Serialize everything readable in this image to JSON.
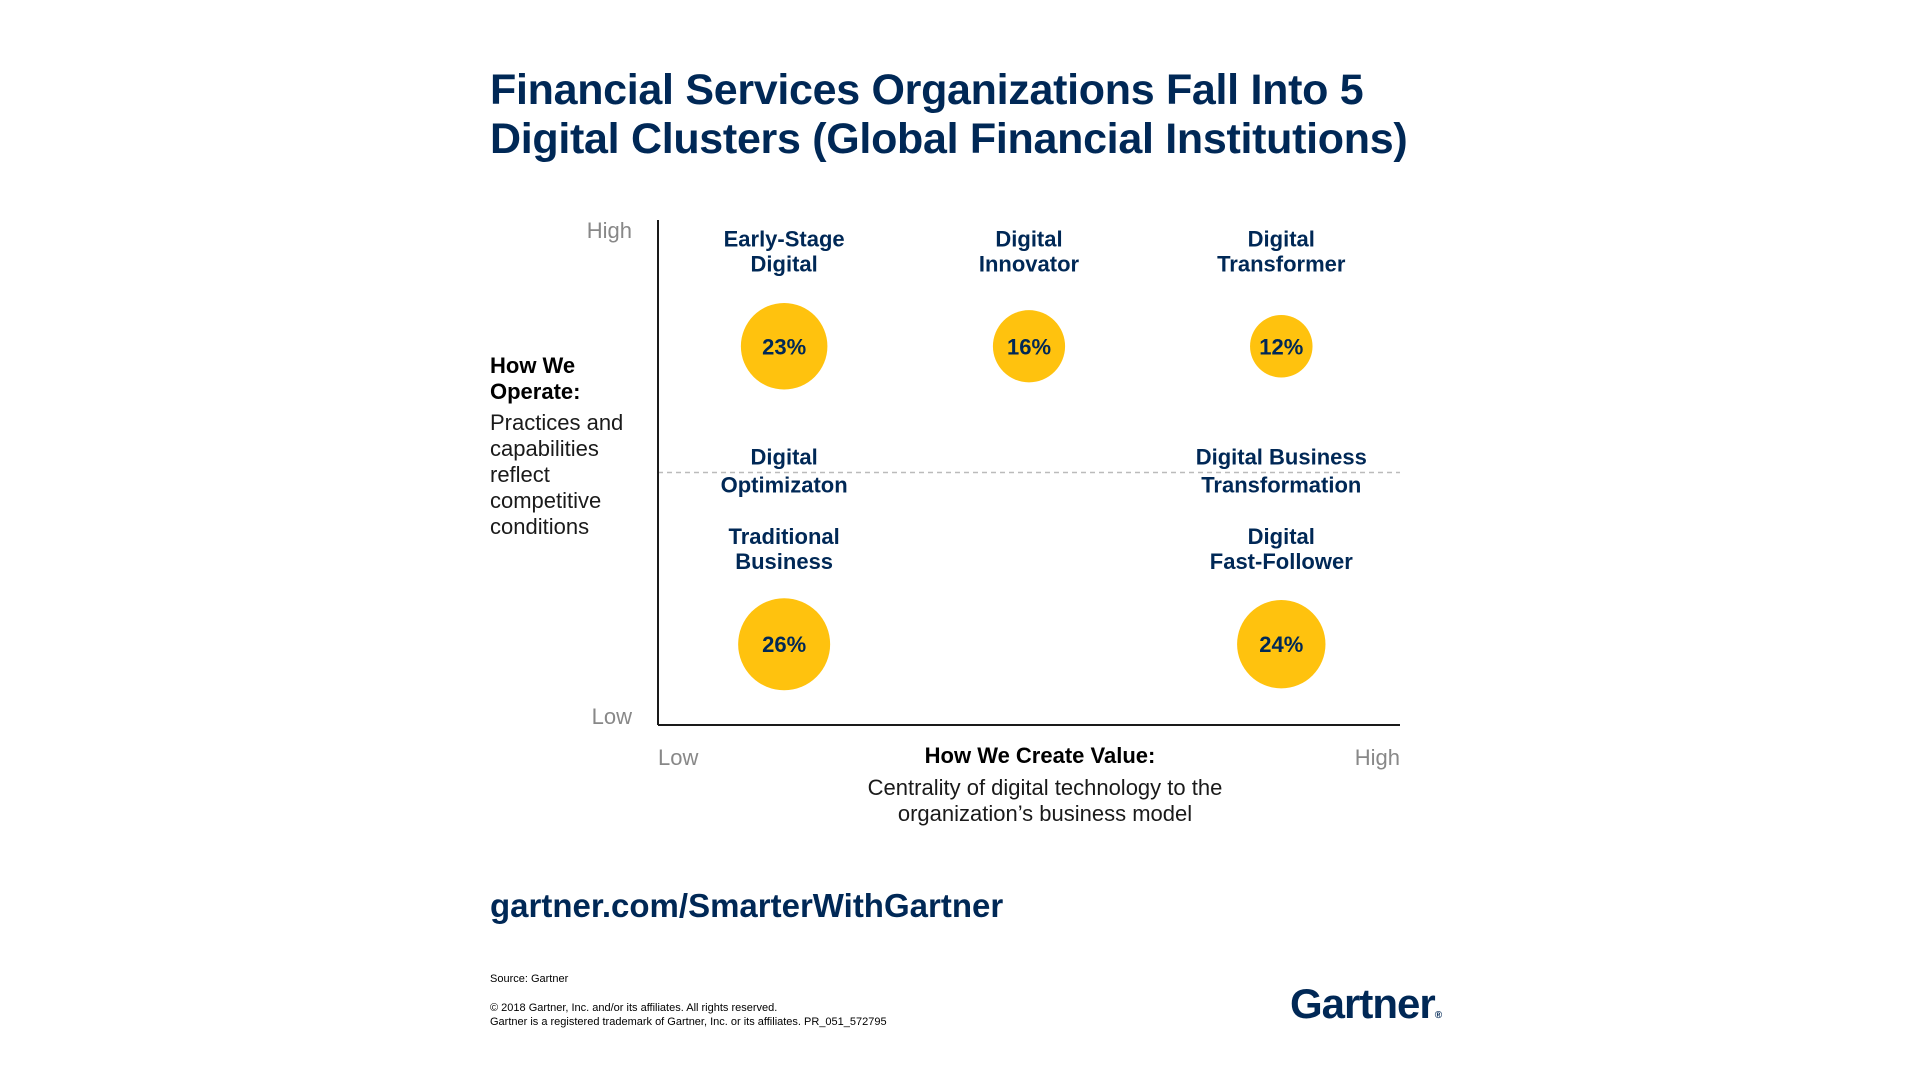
{
  "title": {
    "line1": "Financial Services Organizations Fall Into 5",
    "line2": "Digital Clusters (Global Financial Institutions)"
  },
  "chart_data": {
    "type": "scatter",
    "title": "Financial Services Organizations Fall Into 5 Digital Clusters (Global Financial Institutions)",
    "xlabel": "How We Create Value:",
    "xlabel_sub": "Centrality of digital technology to the organization’s business model",
    "ylabel": "How We Operate:",
    "ylabel_sub": "Practices and capabilities reflect competitive conditions",
    "x_ticks": [
      "Low",
      "High"
    ],
    "y_ticks": [
      "Low",
      "High"
    ],
    "xlim": [
      0,
      1
    ],
    "ylim": [
      0,
      1
    ],
    "grid": false,
    "reference_line": {
      "y": 0.5,
      "style": "dashed"
    },
    "points": [
      {
        "name": "Early-Stage Digital",
        "line1": "Early-Stage",
        "line2": "Digital",
        "x": 0.17,
        "y": 0.75,
        "value": 23,
        "label": "23%"
      },
      {
        "name": "Digital Innovator",
        "line1": "Digital",
        "line2": "Innovator",
        "x": 0.5,
        "y": 0.75,
        "value": 16,
        "label": "16%"
      },
      {
        "name": "Digital Transformer",
        "line1": "Digital",
        "line2": "Transformer",
        "x": 0.84,
        "y": 0.75,
        "value": 12,
        "label": "12%"
      },
      {
        "name": "Traditional Business",
        "line1": "Traditional",
        "line2": "Business",
        "x": 0.17,
        "y": 0.16,
        "value": 26,
        "label": "26%"
      },
      {
        "name": "Digital Fast-Follower",
        "line1": "Digital",
        "line2": "Fast-Follower",
        "x": 0.84,
        "y": 0.16,
        "value": 24,
        "label": "24%"
      }
    ],
    "region_labels": [
      {
        "line1": "Digital",
        "line2": "Optimizaton",
        "x": 0.17
      },
      {
        "line1": "Digital Business",
        "line2": "Transformation",
        "x": 0.84
      }
    ]
  },
  "colors": {
    "navy": "#002856",
    "bubble": "#ffc20e",
    "axis": "#1a1a1a",
    "tick": "#888888",
    "dashed": "#bbbbbb"
  },
  "footer": {
    "url": "gartner.com/SmarterWithGartner",
    "source": "Source: Gartner",
    "copyright1": "© 2018 Gartner, Inc. and/or its affiliates. All rights reserved.",
    "copyright2": "Gartner is a registered trademark of Gartner, Inc. or its affiliates. PR_051_572795",
    "logo": "Gartner",
    "logo_mark": "®"
  }
}
